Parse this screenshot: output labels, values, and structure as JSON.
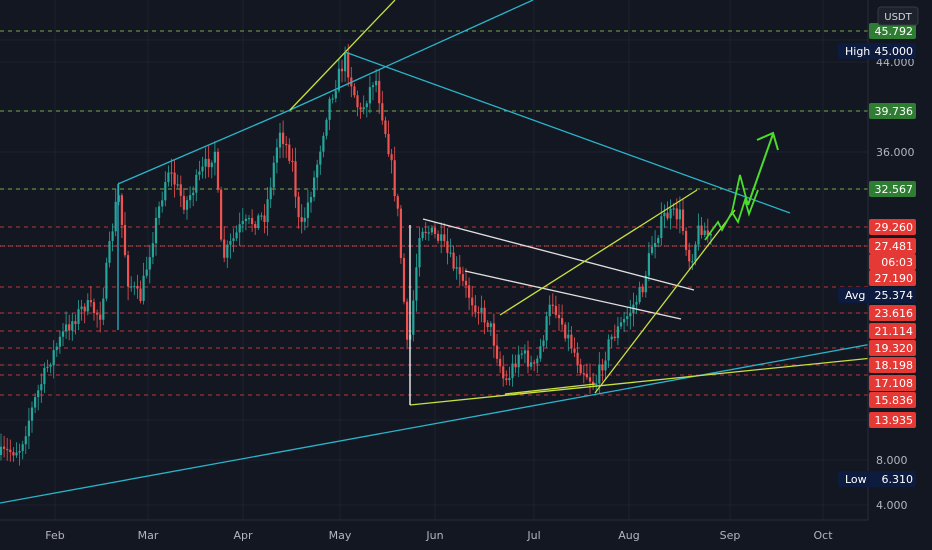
{
  "chart_data": {
    "type": "candlestick",
    "currency": "USDT",
    "x_ticks": [
      "Feb",
      "Mar",
      "Apr",
      "May",
      "Jun",
      "Jul",
      "Aug",
      "Sep",
      "Oct"
    ],
    "y_ticks": [
      "4.000",
      "8.000",
      "36.000",
      "44.000"
    ],
    "price_badges": [
      {
        "label": "",
        "value": "45.792",
        "color": "#2e7d32"
      },
      {
        "label": "High",
        "value": "45.000",
        "color": "#0d1b3e"
      },
      {
        "label": "",
        "value": "39.736",
        "color": "#2e7d32"
      },
      {
        "label": "",
        "value": "32.567",
        "color": "#2e7d32"
      },
      {
        "label": "",
        "value": "29.260",
        "color": "#e53935"
      },
      {
        "label": "",
        "value": "27.481",
        "color": "#e53935"
      },
      {
        "label": "",
        "value": "06:03",
        "color": "#e53935"
      },
      {
        "label": "",
        "value": "27.190",
        "color": "#e53935"
      },
      {
        "label": "Avg",
        "value": "25.374",
        "color": "#0d1b3e"
      },
      {
        "label": "",
        "value": "23.616",
        "color": "#e53935"
      },
      {
        "label": "",
        "value": "21.114",
        "color": "#e53935"
      },
      {
        "label": "",
        "value": "19.320",
        "color": "#e53935"
      },
      {
        "label": "",
        "value": "18.198",
        "color": "#e53935"
      },
      {
        "label": "",
        "value": "17.108",
        "color": "#e53935"
      },
      {
        "label": "",
        "value": "15.836",
        "color": "#e53935"
      },
      {
        "label": "",
        "value": "13.935",
        "color": "#e53935"
      },
      {
        "label": "Low",
        "value": "6.310",
        "color": "#0d1b3e"
      }
    ],
    "colors": {
      "background": "#131722",
      "up": "#26a69a",
      "down": "#ef5350",
      "trend_cyan": "#2bb3c8",
      "trend_yellow": "#c6e040",
      "forecast_arrow": "#4cdc2c",
      "support_lines": "#e53935",
      "target_lines": "#8bc34a"
    },
    "grid": true
  }
}
